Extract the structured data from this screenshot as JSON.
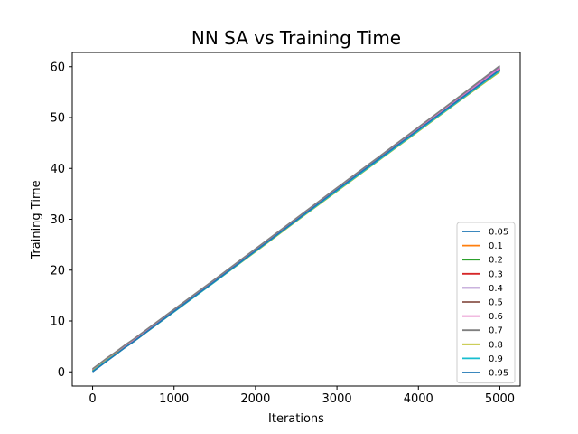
{
  "chart_data": {
    "type": "line",
    "title": "NN SA vs Training Time",
    "xlabel": "Iterations",
    "ylabel": "Training Time",
    "xlim": [
      -250,
      5250
    ],
    "ylim": [
      -2.8,
      62.8
    ],
    "xticks": [
      0,
      1000,
      2000,
      3000,
      4000,
      5000
    ],
    "yticks": [
      0,
      10,
      20,
      30,
      40,
      50,
      60
    ],
    "grid": false,
    "legend_position": "lower-right",
    "x": [
      0,
      100,
      200,
      300,
      400,
      500,
      1000,
      1500,
      2000,
      2500,
      3000,
      3500,
      4000,
      4500,
      5000
    ],
    "series": [
      {
        "name": "0.05",
        "color": "#1f77b4",
        "values": [
          0.1,
          1.4,
          2.6,
          3.7,
          4.9,
          6.0,
          11.9,
          17.8,
          23.8,
          29.8,
          35.8,
          41.8,
          47.6,
          53.5,
          59.5
        ]
      },
      {
        "name": "0.1",
        "color": "#ff7f0e",
        "values": [
          0.3,
          1.5,
          2.7,
          3.8,
          5.0,
          6.1,
          12.0,
          17.9,
          23.9,
          29.9,
          35.9,
          41.8,
          47.7,
          53.6,
          59.6
        ]
      },
      {
        "name": "0.2",
        "color": "#2ca02c",
        "values": [
          0.4,
          1.6,
          2.8,
          3.9,
          5.1,
          6.2,
          12.1,
          18.0,
          24.0,
          30.0,
          36.0,
          41.9,
          47.9,
          53.8,
          59.8
        ]
      },
      {
        "name": "0.3",
        "color": "#d62728",
        "values": [
          0.2,
          1.4,
          2.6,
          3.8,
          4.9,
          6.0,
          12.0,
          17.9,
          23.9,
          29.9,
          35.9,
          41.8,
          47.7,
          53.6,
          59.5
        ]
      },
      {
        "name": "0.4",
        "color": "#9467bd",
        "values": [
          0.5,
          1.7,
          2.9,
          4.0,
          5.2,
          6.3,
          12.2,
          18.1,
          24.1,
          30.1,
          36.1,
          42.0,
          48.0,
          54.0,
          60.0
        ]
      },
      {
        "name": "0.5",
        "color": "#8c564b",
        "values": [
          0.3,
          1.5,
          2.7,
          3.8,
          5.0,
          6.1,
          12.0,
          17.9,
          23.9,
          29.9,
          35.9,
          41.8,
          47.8,
          53.7,
          59.6
        ]
      },
      {
        "name": "0.6",
        "color": "#e377c2",
        "values": [
          0.4,
          1.6,
          2.8,
          3.9,
          5.1,
          6.2,
          12.1,
          18.0,
          24.0,
          30.0,
          36.0,
          41.9,
          47.8,
          53.7,
          59.7
        ]
      },
      {
        "name": "0.7",
        "color": "#7f7f7f",
        "values": [
          0.6,
          1.8,
          3.0,
          4.1,
          5.3,
          6.4,
          12.3,
          18.2,
          24.2,
          30.2,
          36.2,
          42.1,
          48.1,
          54.1,
          60.2
        ]
      },
      {
        "name": "0.8",
        "color": "#bcbd22",
        "values": [
          0.2,
          1.4,
          2.6,
          3.7,
          4.8,
          5.9,
          11.8,
          17.7,
          23.6,
          29.6,
          35.5,
          41.4,
          47.3,
          53.2,
          59.0
        ]
      },
      {
        "name": "0.9",
        "color": "#17becf",
        "values": [
          0.1,
          1.3,
          2.5,
          3.6,
          4.8,
          5.9,
          11.8,
          17.7,
          23.7,
          29.7,
          35.6,
          41.5,
          47.4,
          53.3,
          59.2
        ]
      },
      {
        "name": "0.95",
        "color": "#1f77b4",
        "values": [
          0.0,
          1.2,
          2.4,
          3.6,
          4.8,
          5.9,
          11.9,
          17.8,
          23.8,
          29.8,
          35.8,
          41.7,
          47.6,
          53.5,
          59.4
        ]
      }
    ]
  }
}
